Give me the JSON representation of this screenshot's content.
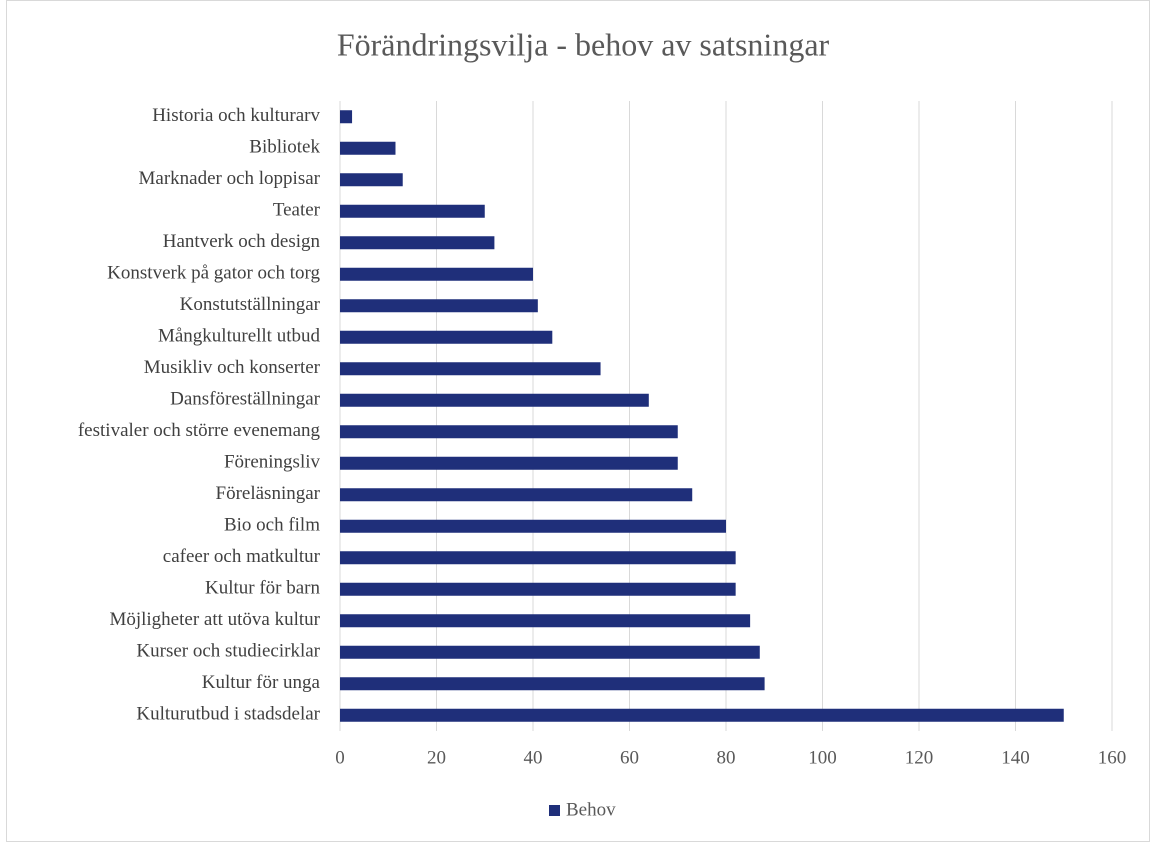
{
  "chart_data": {
    "type": "bar",
    "orientation": "horizontal",
    "title": "Förändringsvilja - behov av satsningar",
    "categories": [
      "Historia och kulturarv",
      "Bibliotek",
      "Marknader och loppisar",
      "Teater",
      "Hantverk och design",
      "Konstverk på gator och torg",
      "Konstutställningar",
      "Mångkulturellt utbud",
      "Musikliv och konserter",
      "Dansföreställningar",
      "festivaler och större evenemang",
      "Föreningsliv",
      "Föreläsningar ",
      "Bio och film",
      "cafeer och matkultur",
      "Kultur för barn",
      "Möjligheter att utöva kultur",
      "Kurser och studiecirklar",
      "Kultur för unga",
      "Kulturutbud i stadsdelar"
    ],
    "series": [
      {
        "name": "Behov",
        "color": "#1f2f7a",
        "values": [
          2.5,
          11.5,
          13,
          30,
          32,
          40,
          41,
          44,
          54,
          64,
          70,
          70,
          73,
          80,
          82,
          82,
          85,
          87,
          88,
          150
        ]
      }
    ],
    "xlim": [
      0,
      160
    ],
    "xticks": [
      0,
      20,
      40,
      60,
      80,
      100,
      120,
      140,
      160
    ],
    "grid": true,
    "legend": "bottom"
  }
}
